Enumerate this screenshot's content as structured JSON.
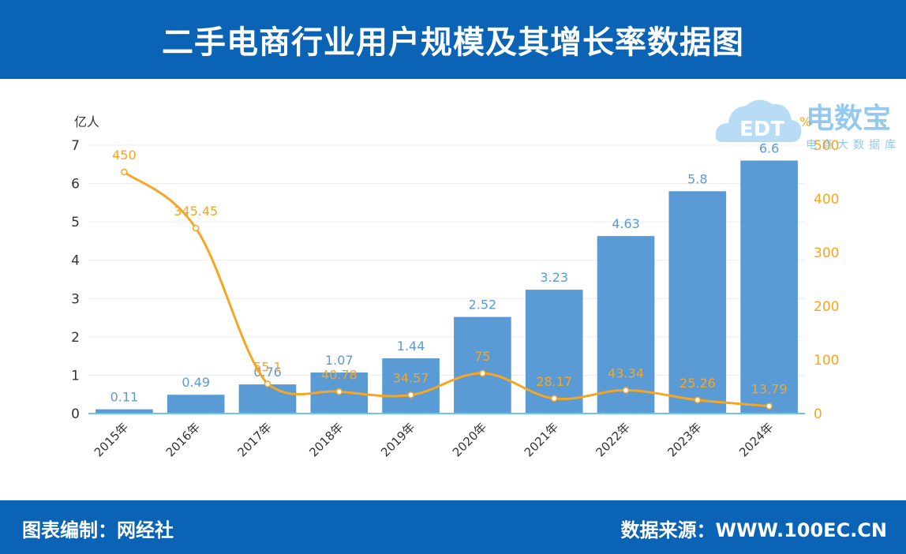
{
  "header": {
    "title": "二手电商行业用户规模及其增长率数据图"
  },
  "footer": {
    "left_text": "图表编制：网经社",
    "right_text": "数据来源：WWW.100EC.CN"
  },
  "watermark": {
    "brand": "电数宝",
    "logo_text": "EDT",
    "subtitle": "电商大数据库"
  },
  "chart_data": {
    "type": "bar+line",
    "categories": [
      "2015年",
      "2016年",
      "2017年",
      "2018年",
      "2019年",
      "2020年",
      "2021年",
      "2022年",
      "2023年",
      "2024年"
    ],
    "series": [
      {
        "type": "bar",
        "axis": "left",
        "values": [
          0.11,
          0.49,
          0.76,
          1.07,
          1.44,
          2.52,
          3.23,
          4.63,
          5.8,
          6.6
        ],
        "labels": [
          "0.11",
          "0.49",
          "0.76",
          "1.07",
          "1.44",
          "2.52",
          "3.23",
          "4.63",
          "5.8",
          "6.6"
        ],
        "color": "#5b9bd5"
      },
      {
        "type": "line",
        "axis": "right",
        "values": [
          450,
          345.45,
          55.1,
          40.78,
          34.57,
          75,
          28.17,
          43.34,
          25.26,
          13.79
        ],
        "labels": [
          "450",
          "345.45",
          "55.1",
          "40.78",
          "34.57",
          "75",
          "28.17",
          "43.34",
          "25.26",
          "13.79"
        ],
        "color": "#f5a623"
      }
    ],
    "y_left": {
      "unit": "亿人",
      "min": 0,
      "max": 7,
      "ticks": [
        "0",
        "1",
        "2",
        "3",
        "4",
        "5",
        "6",
        "7"
      ]
    },
    "y_right": {
      "unit": "%",
      "min": 0,
      "max": 500,
      "ticks": [
        "0",
        "100",
        "200",
        "300",
        "400",
        "500"
      ]
    },
    "grid": true,
    "legend": "none"
  }
}
